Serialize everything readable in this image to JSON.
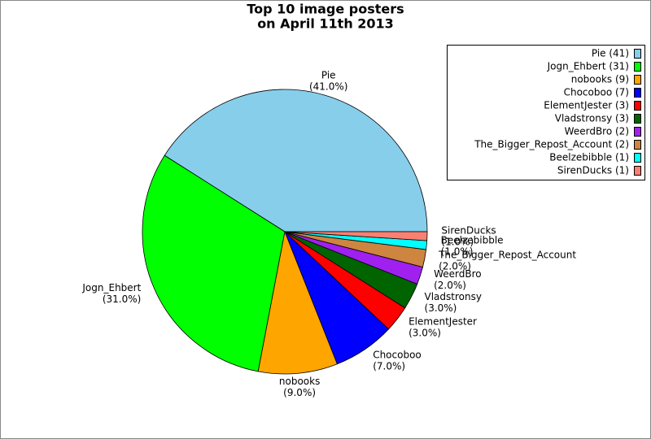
{
  "chart_data": {
    "type": "pie",
    "title": [
      "Top 10 image posters",
      "on April 11th 2013"
    ],
    "categories": [
      "Pie",
      "Jogn_Ehbert",
      "nobooks",
      "Chocoboo",
      "ElementJester",
      "Vladstronsy",
      "WeerdBro",
      "The_Bigger_Repost_Account",
      "Beelzebibble",
      "SirenDucks"
    ],
    "values": [
      41,
      31,
      9,
      7,
      3,
      3,
      2,
      2,
      1,
      1
    ],
    "value_labels": [
      "(41.0%)",
      "(31.0%)",
      "(9.0%)",
      "(7.0%)",
      "(3.0%)",
      "(3.0%)",
      "(2.0%)",
      "(2.0%)",
      "(1.0%)",
      "(1.0%)"
    ],
    "legend_labels": [
      "Pie (41)",
      "Jogn_Ehbert (31)",
      "nobooks (9)",
      "Chocoboo (7)",
      "ElementJester (3)",
      "Vladstronsy (3)",
      "WeerdBro (2)",
      "The_Bigger_Repost_Account (2)",
      "Beelzebibble (1)",
      "SirenDucks (1)"
    ],
    "colors": [
      "#87ceeb",
      "#00ff00",
      "#ffa500",
      "#0000ff",
      "#ff0000",
      "#006400",
      "#a020f0",
      "#cd853f",
      "#00ffff",
      "#fa8072"
    ],
    "legend": "upper right"
  }
}
